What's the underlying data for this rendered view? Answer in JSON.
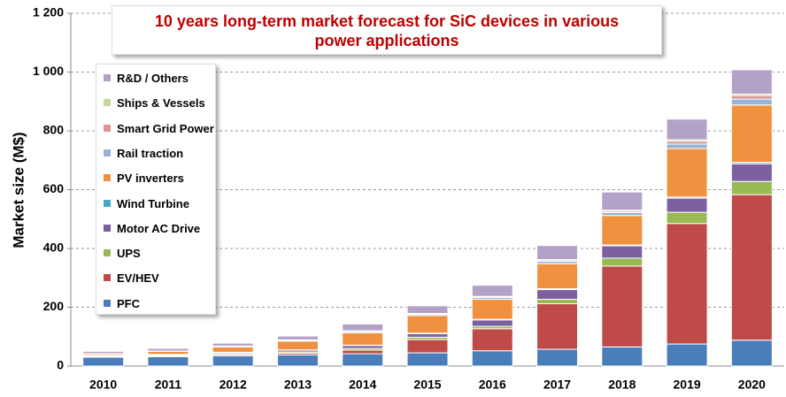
{
  "chart_data": {
    "type": "stacked_bar",
    "title": "10 years long-term market forecast for SiC devices in various power applications",
    "y_label": "Market size (M$)",
    "categories": [
      "2010",
      "2011",
      "2012",
      "2013",
      "2014",
      "2015",
      "2016",
      "2017",
      "2018",
      "2019",
      "2020"
    ],
    "series": [
      {
        "name": "PFC",
        "color": "#4a7ebb",
        "values": [
          30,
          32,
          35,
          38,
          42,
          45,
          52,
          57,
          65,
          75,
          88
        ]
      },
      {
        "name": "EV/HEV",
        "color": "#be4b48",
        "values": [
          3,
          3,
          4,
          6,
          12,
          45,
          75,
          155,
          275,
          410,
          495
        ]
      },
      {
        "name": "UPS",
        "color": "#98b954",
        "values": [
          2,
          2,
          3,
          4,
          6,
          8,
          8,
          15,
          27,
          38,
          45
        ]
      },
      {
        "name": "Motor AC Drive",
        "color": "#7d60a0",
        "values": [
          2,
          3,
          4,
          6,
          10,
          12,
          22,
          33,
          42,
          48,
          60
        ]
      },
      {
        "name": "Wind Turbine",
        "color": "#46aac5",
        "values": [
          0,
          0,
          1,
          1,
          1,
          2,
          2,
          3,
          3,
          4,
          5
        ]
      },
      {
        "name": "PV inverters",
        "color": "#f0913f",
        "values": [
          5,
          10,
          18,
          30,
          42,
          60,
          68,
          85,
          100,
          165,
          195
        ]
      },
      {
        "name": "Rail traction",
        "color": "#95b3d7",
        "values": [
          1,
          1,
          2,
          3,
          4,
          4,
          6,
          8,
          10,
          15,
          20
        ]
      },
      {
        "name": "Smart Grid Power",
        "color": "#d99694",
        "values": [
          0,
          0,
          1,
          1,
          2,
          2,
          3,
          4,
          5,
          10,
          12
        ]
      },
      {
        "name": "Ships & Vessels",
        "color": "#c3d69b",
        "values": [
          0,
          0,
          0,
          0,
          1,
          1,
          1,
          2,
          3,
          5,
          5
        ]
      },
      {
        "name": "R&D / Others",
        "color": "#b3a2c7",
        "values": [
          7,
          9,
          10,
          13,
          23,
          26,
          38,
          48,
          62,
          70,
          83
        ]
      }
    ],
    "ylim": [
      0,
      1200
    ],
    "yticks": [
      0,
      200,
      400,
      600,
      800,
      {
        "value": 1000,
        "label": "1 000"
      },
      {
        "value": 1200,
        "label": "1 200"
      }
    ],
    "grid": true
  }
}
